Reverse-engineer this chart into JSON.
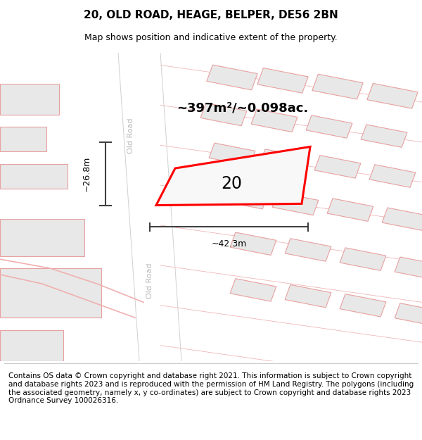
{
  "title": "20, OLD ROAD, HEAGE, BELPER, DE56 2BN",
  "subtitle": "Map shows position and indicative extent of the property.",
  "footer": "Contains OS data © Crown copyright and database right 2021. This information is subject to Crown copyright and database rights 2023 and is reproduced with the permission of HM Land Registry. The polygons (including the associated geometry, namely x, y co-ordinates) are subject to Crown copyright and database rights 2023 Ordnance Survey 100026316.",
  "area_label": "~397m²/~0.098ac.",
  "number_label": "20",
  "dim_horiz": "~42.3m",
  "dim_vert": "~26.8m",
  "road_label_1": "Old Road",
  "road_label_2": "Old Road",
  "bg_color": "#ffffff",
  "building_fill": "#e8e8e8",
  "building_stroke": "#e8a0a0",
  "highlight_fill": "#f8f8f8",
  "highlight_stroke": "#ff0000",
  "dim_line_color": "#404040",
  "title_fontsize": 11,
  "subtitle_fontsize": 9,
  "footer_fontsize": 7.5
}
